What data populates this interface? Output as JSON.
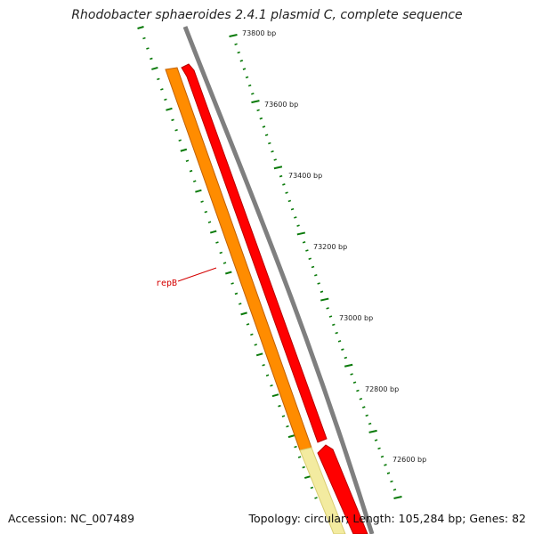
{
  "title": "Rhodobacter sphaeroides 2.4.1 plasmid C, complete sequence",
  "footer": {
    "accession": "Accession: NC_007489",
    "summary": "Topology: circular; Length: 105,284 bp; Genes: 82"
  },
  "scale_labels": [
    "73800 bp",
    "73600 bp",
    "73400 bp",
    "73200 bp",
    "73000 bp",
    "72800 bp",
    "72600 bp"
  ],
  "gene_label": "repB",
  "colors": {
    "backbone": "#7f7f7f",
    "gene_red": "#ff0000",
    "gene_orange": "#ff8c00",
    "gene_pale": "#f3eba0",
    "tick_green": "#0a7a0a",
    "label_red": "#d40000"
  }
}
